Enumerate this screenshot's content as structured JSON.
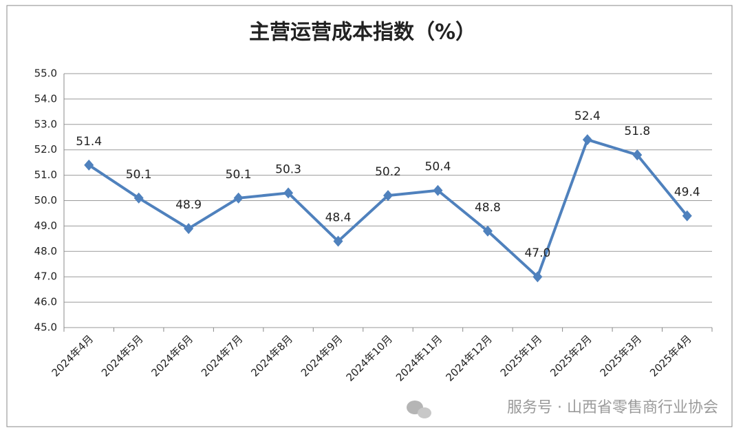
{
  "chart_data": {
    "type": "line",
    "title": "主营运营成本指数（%）",
    "categories": [
      "2024年4月",
      "2024年5月",
      "2024年6月",
      "2024年7月",
      "2024年8月",
      "2024年9月",
      "2024年10月",
      "2024年11月",
      "2024年12月",
      "2025年1月",
      "2025年2月",
      "2025年3月",
      "2025年4月"
    ],
    "series": [
      {
        "name": "主营运营成本指数",
        "color": "#4f81bd",
        "values": [
          51.4,
          50.1,
          48.9,
          50.1,
          50.3,
          48.4,
          50.2,
          50.4,
          48.8,
          47.0,
          52.4,
          51.8,
          49.4
        ],
        "value_labels": [
          "51.4",
          "50.1",
          "48.9",
          "50.1",
          "50.3",
          "48.4",
          "50.2",
          "50.4",
          "48.8",
          "47.0",
          "52.4",
          "51.8",
          "49.4"
        ]
      }
    ],
    "ylim": [
      45,
      55
    ],
    "yticks": [
      {
        "value": 45,
        "label": "45.0"
      },
      {
        "value": 46,
        "label": "46.0"
      },
      {
        "value": 47,
        "label": "47.0"
      },
      {
        "value": 48,
        "label": "48.0"
      },
      {
        "value": 49,
        "label": "49.0"
      },
      {
        "value": 50,
        "label": "50.0"
      },
      {
        "value": 51,
        "label": "51.0"
      },
      {
        "value": 52,
        "label": "52.0"
      },
      {
        "value": 53,
        "label": "53.0"
      },
      {
        "value": 54,
        "label": "54.0"
      },
      {
        "value": 55,
        "label": "55.0"
      }
    ],
    "grid": true,
    "watermark": "服务号 · 山西省零售商行业协会"
  }
}
